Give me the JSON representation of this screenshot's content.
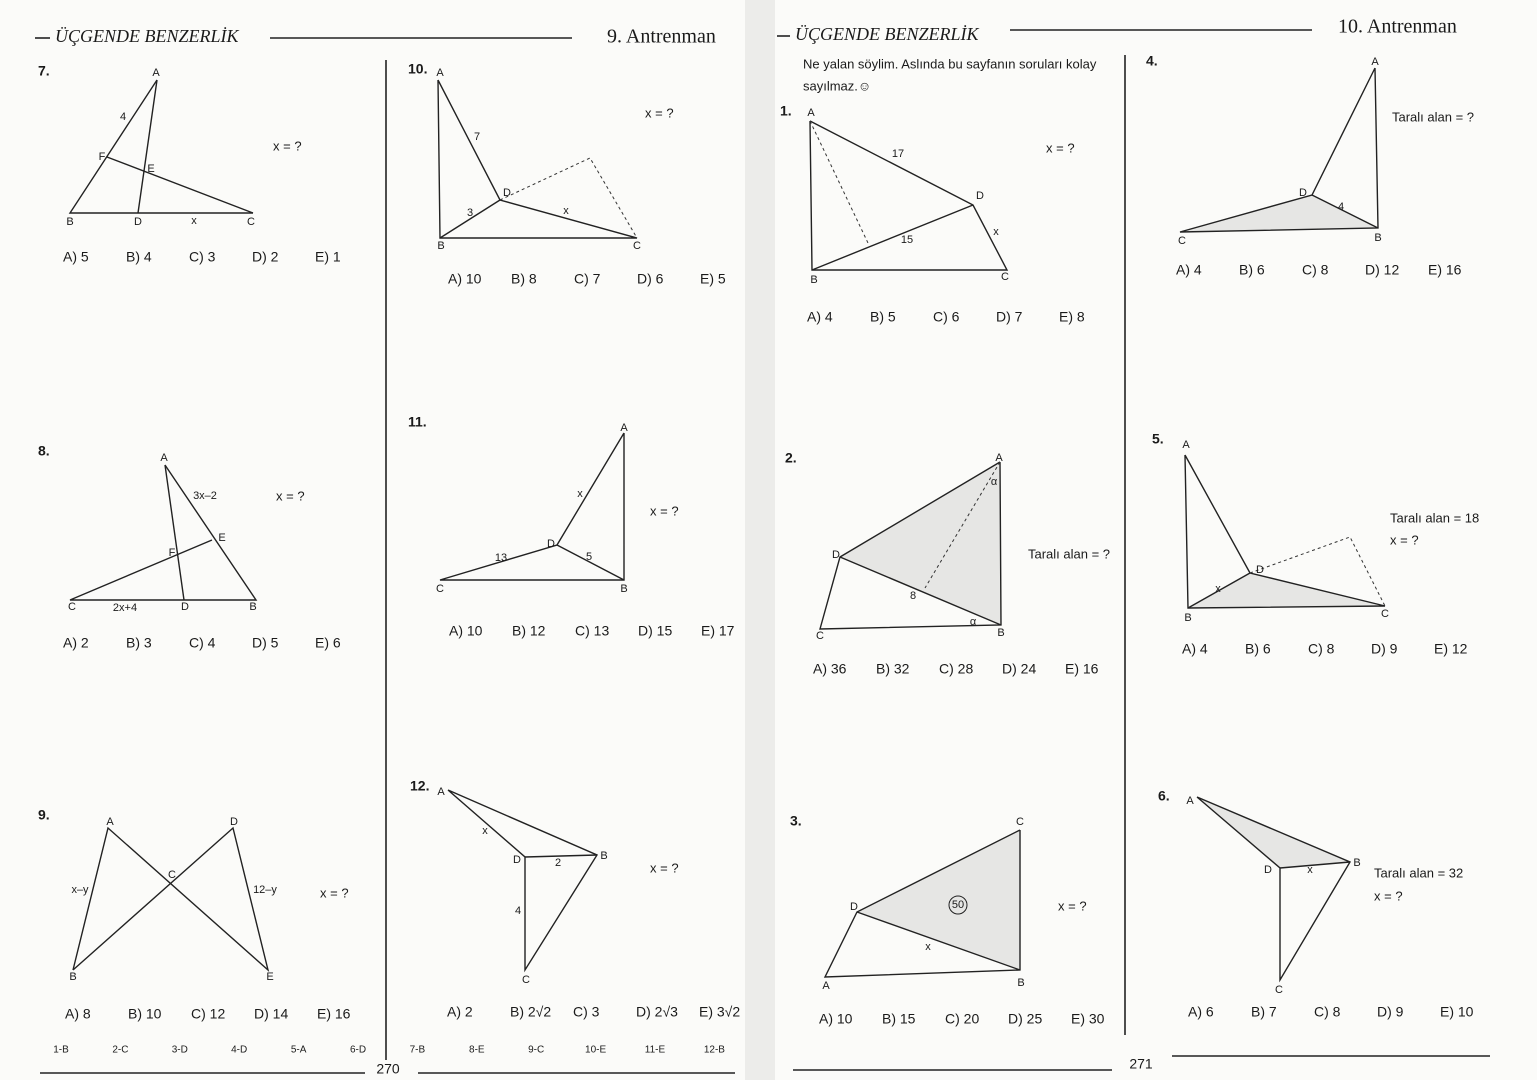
{
  "pages": [
    {
      "header_title": "ÜÇGENDE BENZERLİK",
      "section": "9. Antrenman",
      "page_number": "270",
      "answer_key": [
        "1-B",
        "2-C",
        "3-D",
        "4-D",
        "5-A",
        "6-D",
        "7-B",
        "8-E",
        "9-C",
        "10-E",
        "11-E",
        "12-B"
      ]
    },
    {
      "header_title": "ÜÇGENDE BENZERLİK",
      "section": "10. Antrenman",
      "page_number": "271",
      "intro": [
        "Ne yalan söylim. Aslında bu sayfanın soruları kolay",
        "sayılmaz.☺"
      ]
    }
  ],
  "problems": [
    {
      "number": "7.",
      "questions": [
        "x = ?"
      ],
      "labels": [
        "A",
        "4",
        "F",
        "E",
        "B",
        "D",
        "x",
        "C"
      ],
      "choices": [
        "A) 5",
        "B) 4",
        "C) 3",
        "D) 2",
        "E) 1"
      ]
    },
    {
      "number": "8.",
      "questions": [
        "x = ?"
      ],
      "labels": [
        "A",
        "3x–2",
        "E",
        "F",
        "C",
        "2x+4",
        "D",
        "B"
      ],
      "choices": [
        "A) 2",
        "B) 3",
        "C) 4",
        "D) 5",
        "E) 6"
      ]
    },
    {
      "number": "9.",
      "questions": [
        "x = ?"
      ],
      "labels": [
        "A",
        "D",
        "C",
        "x–y",
        "12–y",
        "B",
        "E"
      ],
      "choices": [
        "A) 8",
        "B) 10",
        "C) 12",
        "D) 14",
        "E) 16"
      ]
    },
    {
      "number": "10.",
      "questions": [
        "x = ?"
      ],
      "labels": [
        "A",
        "7",
        "D",
        "3",
        "x",
        "B",
        "C"
      ],
      "choices": [
        "A) 10",
        "B) 8",
        "C) 7",
        "D) 6",
        "E) 5"
      ]
    },
    {
      "number": "11.",
      "questions": [
        "x = ?"
      ],
      "labels": [
        "A",
        "x",
        "13",
        "D",
        "5",
        "C",
        "B"
      ],
      "choices": [
        "A) 10",
        "B) 12",
        "C) 13",
        "D) 15",
        "E) 17"
      ]
    },
    {
      "number": "12.",
      "questions": [
        "x = ?"
      ],
      "labels": [
        "A",
        "x",
        "D",
        "2",
        "B",
        "4",
        "C"
      ],
      "choices": [
        "A) 2",
        "B) 2√2",
        "C) 3",
        "D) 2√3",
        "E) 3√2"
      ]
    },
    {
      "number": "1.",
      "questions": [
        "x = ?"
      ],
      "labels": [
        "A",
        "17",
        "D",
        "x",
        "15",
        "B",
        "C"
      ],
      "choices": [
        "A) 4",
        "B) 5",
        "C) 6",
        "D) 7",
        "E) 8"
      ]
    },
    {
      "number": "2.",
      "questions": [
        "Taralı alan = ?"
      ],
      "labels": [
        "A",
        "α",
        "D",
        "8",
        "α",
        "C",
        "B"
      ],
      "choices": [
        "A) 36",
        "B) 32",
        "C) 28",
        "D) 24",
        "E) 16"
      ]
    },
    {
      "number": "3.",
      "questions": [
        "x = ?"
      ],
      "labels": [
        "C",
        "D",
        "50",
        "x",
        "A",
        "B"
      ],
      "choices": [
        "A) 10",
        "B) 15",
        "C) 20",
        "D) 25",
        "E) 30"
      ]
    },
    {
      "number": "4.",
      "questions": [
        "Taralı alan = ?"
      ],
      "labels": [
        "A",
        "D",
        "4",
        "C",
        "B"
      ],
      "choices": [
        "A) 4",
        "B) 6",
        "C) 8",
        "D) 12",
        "E) 16"
      ]
    },
    {
      "number": "5.",
      "questions": [
        "Taralı alan = 18",
        "x = ?"
      ],
      "labels": [
        "A",
        "D",
        "x",
        "B",
        "C"
      ],
      "choices": [
        "A) 4",
        "B) 6",
        "C) 8",
        "D) 9",
        "E) 12"
      ]
    },
    {
      "number": "6.",
      "questions": [
        "Taralı alan = 32",
        "x = ?"
      ],
      "labels": [
        "A",
        "D",
        "x",
        "B",
        "C"
      ],
      "choices": [
        "A) 6",
        "B) 7",
        "C) 8",
        "D) 9",
        "E) 10"
      ]
    }
  ]
}
